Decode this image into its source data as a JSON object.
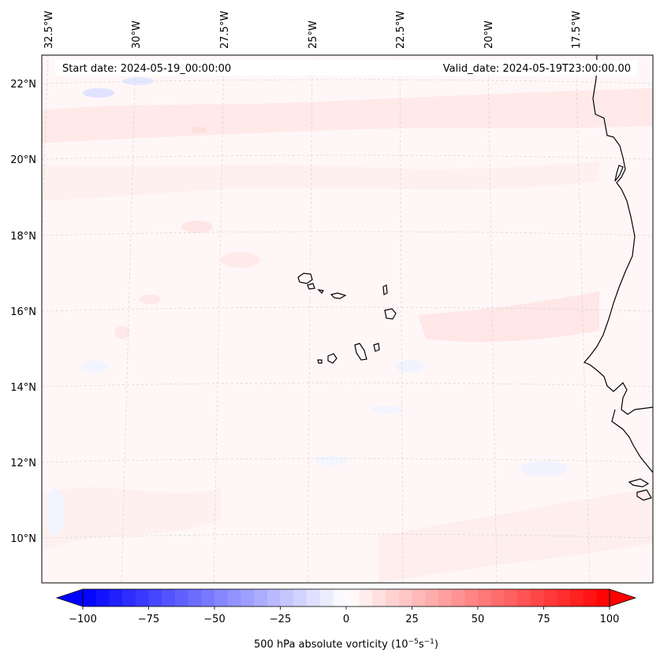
{
  "header": {
    "start_date": "Start date: 2024-05-19_00:00:00",
    "valid_date": "Valid_date: 2024-05-19T23:00:00.00"
  },
  "longitude_labels": [
    "32.5°W",
    "30°W",
    "27.5°W",
    "25°W",
    "22.5°W",
    "20°W",
    "17.5°W"
  ],
  "latitude_labels": [
    "22°N",
    "20°N",
    "18°N",
    "16°N",
    "14°N",
    "12°N",
    "10°N"
  ],
  "colorbar": {
    "title": "500 hPa absolute vorticity (10",
    "title_exp1": "−5",
    "title_mid": "s",
    "title_exp2": "−1",
    "title_end": ")",
    "min": -100,
    "max": 100,
    "tick_labels": [
      "−100",
      "−75",
      "−50",
      "−25",
      "0",
      "25",
      "50",
      "75",
      "100"
    ],
    "low_color": "#0000ff",
    "mid_color": "#ffffff",
    "high_color": "#ff0000"
  },
  "colors": {
    "background_field": "#fff7f7",
    "positive_band": "#ffe8e8",
    "negative_patch": "#eef2ff",
    "coastline": "#000000",
    "gridline": "#c8c8c8"
  }
}
